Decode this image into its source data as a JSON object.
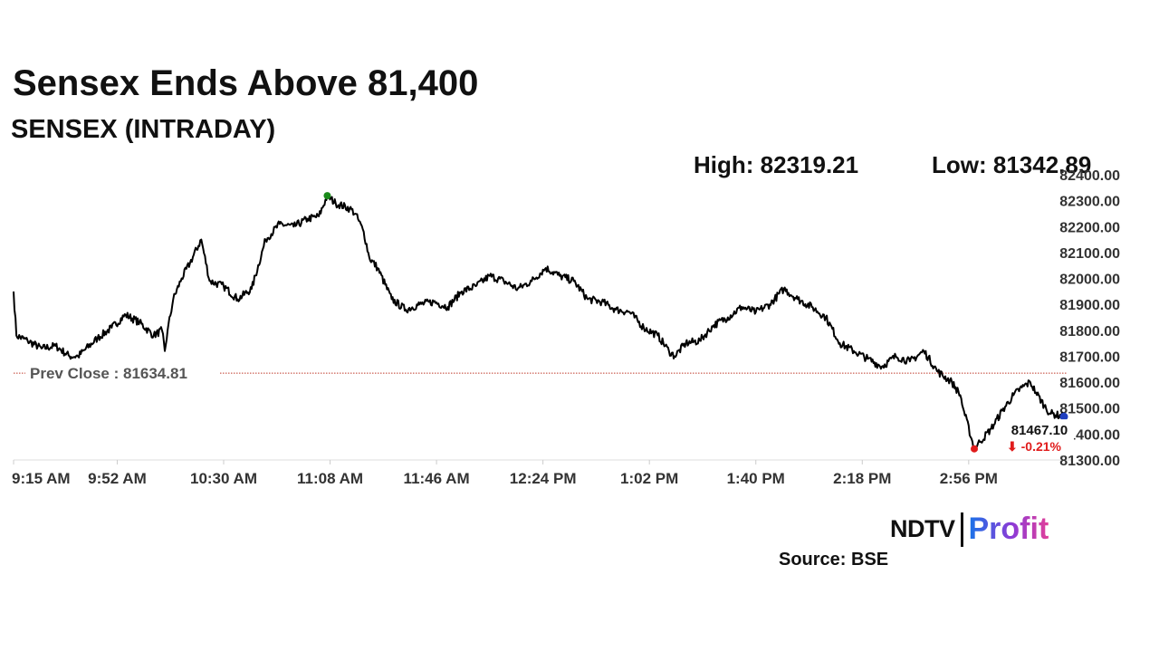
{
  "title": "Sensex Ends Above 81,400",
  "subtitle": "SENSEX (INTRADAY)",
  "stats": {
    "high": "High: 82319.21",
    "low": "Low: 81342.89"
  },
  "brand": {
    "ndtv": "NDTV",
    "profit": "Profit"
  },
  "source": "Source: BSE",
  "colors": {
    "line": "#000000",
    "prev_close": "#c0392b",
    "high_marker": "#1a8a1a",
    "low_marker": "#e01b1b",
    "last_marker": "#1f3fbf",
    "change_negative": "#e01b1b"
  },
  "chart_data": {
    "type": "line",
    "title": "SENSEX (INTRADAY)",
    "ylim": [
      81300,
      82400
    ],
    "y_ticks": [
      "82400.00",
      "82300.00",
      "82200.00",
      "82100.00",
      "82000.00",
      "81900.00",
      "81800.00",
      "81700.00",
      "81600.00",
      "81500.00",
      "81400.00",
      "81300.00"
    ],
    "x_ticks": [
      "9:15 AM",
      "9:52 AM",
      "10:30 AM",
      "11:08 AM",
      "11:46 AM",
      "12:24 PM",
      "1:02 PM",
      "1:40 PM",
      "2:18 PM",
      "2:56 PM"
    ],
    "x_range_minutes": [
      555,
      930
    ],
    "grid": false,
    "prev_close": {
      "value": 81634.81,
      "label": "Prev Close : 81634.81"
    },
    "last": {
      "value": 81467.1,
      "label": "81467.10",
      "change": "⬇ -0.21%"
    },
    "high_point": {
      "time": "11:07 AM",
      "value": 82319.21
    },
    "low_point": {
      "time": "2:58 PM",
      "value": 81342.89
    },
    "series": [
      {
        "x": [
          "9:15 AM",
          "9:16 AM",
          "9:20 AM",
          "9:25 AM",
          "9:30 AM",
          "9:35 AM",
          "9:38 AM",
          "9:45 AM",
          "9:50 AM",
          "9:55 AM",
          "10:00 AM",
          "10:05 AM",
          "10:08 AM",
          "10:09 AM",
          "10:10 AM",
          "10:12 AM",
          "10:15 AM",
          "10:18 AM",
          "10:22 AM",
          "10:25 AM",
          "10:30 AM",
          "10:35 AM",
          "10:40 AM",
          "10:45 AM",
          "10:50 AM",
          "10:55 AM",
          "11:00 AM",
          "11:04 AM",
          "11:07 AM",
          "11:10 AM",
          "11:15 AM",
          "11:17 AM",
          "11:20 AM",
          "11:22 AM",
          "11:25 AM",
          "11:30 AM",
          "11:35 AM",
          "11:40 AM",
          "11:45 AM",
          "11:50 AM",
          "11:55 AM",
          "12:00 PM",
          "12:05 PM",
          "12:10 PM",
          "12:15 PM",
          "12:20 PM",
          "12:25 PM",
          "12:30 PM",
          "12:35 PM",
          "12:40 PM",
          "12:45 PM",
          "12:50 PM",
          "12:55 PM",
          "1:00 PM",
          "1:05 PM",
          "1:09 PM",
          "1:11 PM",
          "1:15 PM",
          "1:20 PM",
          "1:25 PM",
          "1:30 PM",
          "1:35 PM",
          "1:40 PM",
          "1:45 PM",
          "1:50 PM",
          "1:55 PM",
          "2:00 PM",
          "2:05 PM",
          "2:10 PM",
          "2:15 PM",
          "2:20 PM",
          "2:25 PM",
          "2:30 PM",
          "2:35 PM",
          "2:40 PM",
          "2:45 PM",
          "2:50 PM",
          "2:53 PM",
          "2:54 PM",
          "2:58 PM",
          "3:00 PM",
          "3:04 PM",
          "3:08 PM",
          "3:12 PM",
          "3:15 PM",
          "3:18 PM",
          "3:20 PM",
          "3:23 PM",
          "3:25 PM",
          "3:30 PM"
        ],
        "y": [
          81950,
          81780,
          81760,
          81730,
          81740,
          81700,
          81700,
          81770,
          81810,
          81860,
          81830,
          81780,
          81800,
          81720,
          81800,
          81920,
          82000,
          82060,
          82150,
          81990,
          81970,
          81920,
          81960,
          82150,
          82210,
          82200,
          82230,
          82240,
          82319,
          82290,
          82270,
          82250,
          82180,
          82080,
          82040,
          81920,
          81880,
          81900,
          81910,
          81890,
          81950,
          81970,
          82010,
          81990,
          81960,
          81990,
          82040,
          82010,
          81990,
          81920,
          81910,
          81880,
          81870,
          81810,
          81780,
          81720,
          81700,
          81750,
          81760,
          81820,
          81850,
          81890,
          81870,
          81900,
          81960,
          81920,
          81890,
          81850,
          81750,
          81720,
          81690,
          81660,
          81700,
          81680,
          81720,
          81640,
          81600,
          81550,
          81500,
          81343,
          81370,
          81420,
          81490,
          81550,
          81580,
          81600,
          81560,
          81510,
          81480,
          81467
        ]
      }
    ]
  }
}
